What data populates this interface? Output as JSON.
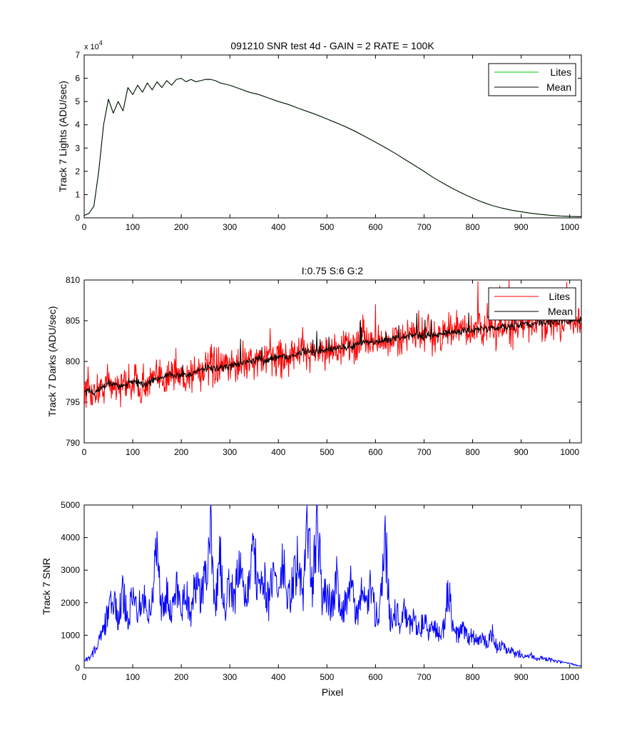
{
  "chart_data": [
    {
      "type": "line",
      "title": "091210  SNR test 4d - GAIN = 2  RATE = 100K",
      "xlabel": "",
      "ylabel": "Track 7 Lights (ADU/sec)",
      "exponent_label": "x 10",
      "exponent_power": "4",
      "xlim": [
        0,
        1024
      ],
      "ylim": [
        0,
        7
      ],
      "xticks": [
        0,
        100,
        200,
        300,
        400,
        500,
        600,
        700,
        800,
        900,
        1000
      ],
      "yticks": [
        0,
        1,
        2,
        3,
        4,
        5,
        6,
        7
      ],
      "grid": false,
      "legend_position": "top-right",
      "x": [
        0,
        10,
        20,
        30,
        40,
        50,
        60,
        70,
        80,
        90,
        100,
        110,
        120,
        130,
        140,
        150,
        160,
        170,
        180,
        190,
        200,
        210,
        220,
        230,
        240,
        250,
        260,
        270,
        280,
        290,
        300,
        320,
        340,
        360,
        380,
        400,
        420,
        440,
        460,
        480,
        500,
        520,
        540,
        560,
        580,
        600,
        620,
        640,
        660,
        680,
        700,
        720,
        740,
        760,
        780,
        800,
        820,
        840,
        860,
        880,
        900,
        920,
        940,
        960,
        980,
        1000,
        1024
      ],
      "series": [
        {
          "name": "Lites",
          "color": "#00cc00",
          "values": [
            0.1,
            0.2,
            0.5,
            2.0,
            4.0,
            5.1,
            4.5,
            5.0,
            4.6,
            5.6,
            5.3,
            5.7,
            5.4,
            5.8,
            5.5,
            5.85,
            5.6,
            5.9,
            5.7,
            5.95,
            6.0,
            5.85,
            5.95,
            5.85,
            5.9,
            5.95,
            5.95,
            5.9,
            5.8,
            5.75,
            5.7,
            5.55,
            5.4,
            5.3,
            5.15,
            5.0,
            4.88,
            4.72,
            4.57,
            4.42,
            4.25,
            4.08,
            3.9,
            3.7,
            3.48,
            3.25,
            3.02,
            2.78,
            2.52,
            2.26,
            2.0,
            1.72,
            1.48,
            1.25,
            1.04,
            0.85,
            0.68,
            0.53,
            0.42,
            0.33,
            0.26,
            0.2,
            0.15,
            0.11,
            0.08,
            0.06,
            0.05
          ]
        },
        {
          "name": "Mean",
          "color": "#000000",
          "values": [
            0.1,
            0.2,
            0.5,
            2.0,
            4.0,
            5.1,
            4.5,
            5.0,
            4.6,
            5.6,
            5.3,
            5.7,
            5.4,
            5.8,
            5.5,
            5.85,
            5.6,
            5.9,
            5.7,
            5.95,
            6.0,
            5.85,
            5.95,
            5.85,
            5.9,
            5.95,
            5.95,
            5.9,
            5.8,
            5.75,
            5.7,
            5.55,
            5.4,
            5.3,
            5.15,
            5.0,
            4.88,
            4.72,
            4.57,
            4.42,
            4.25,
            4.08,
            3.9,
            3.7,
            3.48,
            3.25,
            3.02,
            2.78,
            2.52,
            2.26,
            2.0,
            1.72,
            1.48,
            1.25,
            1.04,
            0.85,
            0.68,
            0.53,
            0.42,
            0.33,
            0.26,
            0.2,
            0.15,
            0.11,
            0.08,
            0.06,
            0.05
          ]
        }
      ]
    },
    {
      "type": "line",
      "title": "I:0.75  S:6  G:2",
      "xlabel": "",
      "ylabel": "Track 7 Darks (ADU/sec)",
      "xlim": [
        0,
        1024
      ],
      "ylim": [
        790,
        810
      ],
      "xticks": [
        0,
        100,
        200,
        300,
        400,
        500,
        600,
        700,
        800,
        900,
        1000
      ],
      "yticks": [
        790,
        795,
        800,
        805,
        810
      ],
      "grid": false,
      "legend_position": "top-right",
      "x": [
        0,
        25,
        50,
        75,
        100,
        125,
        150,
        175,
        200,
        225,
        250,
        275,
        300,
        325,
        350,
        375,
        400,
        425,
        450,
        475,
        500,
        525,
        550,
        575,
        600,
        625,
        650,
        675,
        700,
        725,
        750,
        775,
        800,
        825,
        850,
        875,
        900,
        925,
        950,
        975,
        1000,
        1024
      ],
      "series": [
        {
          "name": "Lites",
          "color": "#ff0000",
          "values": [
            796.3,
            796.2,
            797.4,
            796.9,
            797.6,
            797.1,
            797.9,
            798.4,
            798.2,
            798.5,
            799.3,
            799.1,
            799.4,
            799.8,
            800.2,
            800.1,
            800.7,
            800.5,
            801.3,
            801.1,
            801.5,
            801.6,
            801.8,
            802.4,
            802.3,
            802.6,
            802.9,
            803.2,
            803.1,
            803.4,
            803.5,
            803.7,
            803.9,
            804.0,
            804.1,
            804.3,
            804.5,
            804.6,
            804.8,
            804.9,
            805.0,
            805.2
          ],
          "noise_band": 2.5
        },
        {
          "name": "Mean",
          "color": "#000000",
          "values": [
            796.3,
            796.2,
            797.4,
            796.9,
            797.6,
            797.1,
            797.9,
            798.4,
            798.2,
            798.5,
            799.3,
            799.1,
            799.4,
            799.8,
            800.2,
            800.1,
            800.7,
            800.5,
            801.3,
            801.1,
            801.5,
            801.6,
            801.8,
            802.4,
            802.3,
            802.6,
            802.9,
            803.2,
            803.1,
            803.4,
            803.5,
            803.7,
            803.9,
            804.0,
            804.1,
            804.3,
            804.5,
            804.6,
            804.8,
            804.9,
            805.0,
            805.2
          ],
          "noise_band": 0.5
        }
      ]
    },
    {
      "type": "line",
      "title": "",
      "xlabel": "Pixel",
      "ylabel": "Track 7 SNR",
      "xlim": [
        0,
        1024
      ],
      "ylim": [
        0,
        5000
      ],
      "xticks": [
        0,
        100,
        200,
        300,
        400,
        500,
        600,
        700,
        800,
        900,
        1000
      ],
      "yticks": [
        0,
        1000,
        2000,
        3000,
        4000,
        5000
      ],
      "grid": false,
      "series": [
        {
          "name": "",
          "color": "#0000ff",
          "x": [
            0,
            10,
            20,
            30,
            40,
            50,
            60,
            70,
            80,
            90,
            100,
            110,
            120,
            130,
            140,
            150,
            160,
            170,
            180,
            190,
            200,
            210,
            220,
            230,
            240,
            250,
            260,
            270,
            280,
            290,
            300,
            310,
            320,
            330,
            340,
            350,
            360,
            370,
            380,
            390,
            400,
            410,
            420,
            430,
            440,
            450,
            460,
            470,
            480,
            490,
            500,
            510,
            520,
            530,
            540,
            550,
            560,
            570,
            580,
            590,
            600,
            610,
            620,
            630,
            640,
            650,
            660,
            670,
            680,
            690,
            700,
            710,
            720,
            730,
            740,
            750,
            760,
            770,
            780,
            790,
            800,
            810,
            820,
            830,
            840,
            850,
            860,
            870,
            880,
            890,
            900,
            910,
            920,
            930,
            940,
            950,
            960,
            970,
            980,
            990,
            1000,
            1010,
            1024
          ],
          "values": [
            200,
            300,
            500,
            800,
            1100,
            1800,
            2000,
            1500,
            2300,
            1600,
            2100,
            1800,
            2400,
            1700,
            2000,
            4000,
            1800,
            2200,
            1600,
            2500,
            1900,
            2300,
            1700,
            2600,
            2100,
            2800,
            4200,
            2000,
            3300,
            1900,
            2500,
            2200,
            3100,
            2000,
            2700,
            3500,
            2200,
            2900,
            1900,
            3000,
            2300,
            3200,
            2000,
            2600,
            3300,
            2100,
            4700,
            2200,
            4800,
            2000,
            2400,
            1800,
            2800,
            1700,
            2100,
            2500,
            1600,
            2200,
            1900,
            2400,
            1600,
            2000,
            4000,
            1500,
            1800,
            1400,
            1700,
            1300,
            1500,
            1200,
            1400,
            1100,
            1300,
            1000,
            1200,
            2500,
            1100,
            1000,
            1200,
            900,
            1000,
            800,
            900,
            700,
            1100,
            600,
            700,
            500,
            500,
            400,
            450,
            350,
            400,
            300,
            300,
            250,
            250,
            200,
            180,
            150,
            120,
            100,
            60
          ]
        }
      ]
    }
  ]
}
